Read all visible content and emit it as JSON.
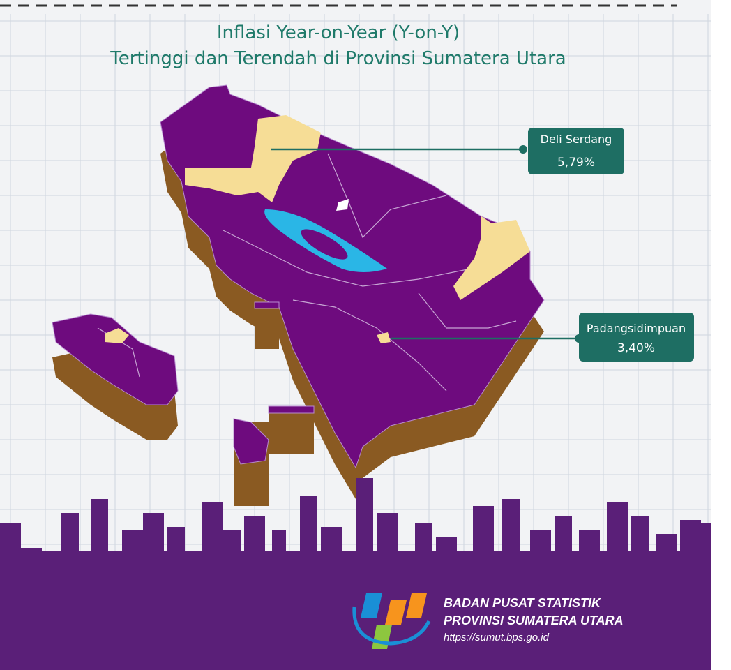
{
  "title": {
    "line1": "Inflasi Year-on-Year (Y-on-Y)",
    "line2": "Tertinggi dan Terendah di Provinsi Sumatera Utara"
  },
  "callouts": [
    {
      "region": "Deli Serdang",
      "inflation": "5,79%"
    },
    {
      "region": "Padangsidimpuan",
      "inflation": "3,40%"
    }
  ],
  "footer": {
    "org": "BADAN PUSAT STATISTIK",
    "province": "PROVINSI SUMATERA UTARA",
    "url": "https://sumut.bps.go.id"
  }
}
